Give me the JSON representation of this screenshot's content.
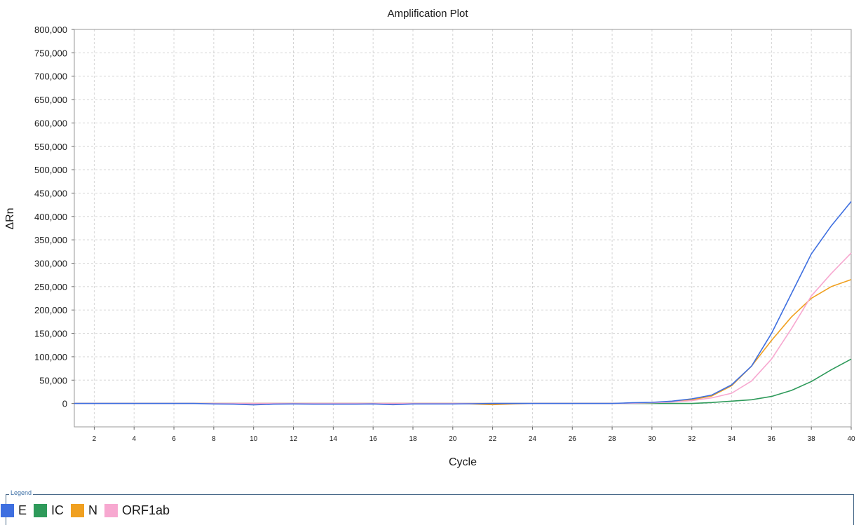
{
  "colors": {
    "E": "#3e6fe0",
    "IC": "#2e9a5a",
    "N": "#f0a020",
    "ORF1ab": "#f7a8d0"
  },
  "chart_data": {
    "type": "line",
    "title": "Amplification Plot",
    "xlabel": "Cycle",
    "ylabel": "ΔRn",
    "xlim": [
      1,
      40
    ],
    "ylim": [
      -50000,
      800000
    ],
    "xticks": [
      2,
      4,
      6,
      8,
      10,
      12,
      14,
      16,
      18,
      20,
      22,
      24,
      26,
      28,
      30,
      32,
      34,
      36,
      38,
      40
    ],
    "yticks": [
      0,
      50000,
      100000,
      150000,
      200000,
      250000,
      300000,
      350000,
      400000,
      450000,
      500000,
      550000,
      600000,
      650000,
      700000,
      750000,
      800000
    ],
    "ytick_labels": [
      "0",
      "50,000",
      "100,000",
      "150,000",
      "200,000",
      "250,000",
      "300,000",
      "350,000",
      "400,000",
      "450,000",
      "500,000",
      "550,000",
      "600,000",
      "650,000",
      "700,000",
      "750,000",
      "800,000"
    ],
    "grid": true,
    "legend_title": "Legend",
    "legend_position": "bottom",
    "x": [
      1,
      2,
      3,
      4,
      5,
      6,
      7,
      8,
      9,
      10,
      11,
      12,
      13,
      14,
      15,
      16,
      17,
      18,
      19,
      20,
      21,
      22,
      23,
      24,
      25,
      26,
      27,
      28,
      29,
      30,
      31,
      32,
      33,
      34,
      35,
      36,
      37,
      38,
      39,
      40
    ],
    "series": [
      {
        "name": "E",
        "values": [
          0,
          0,
          0,
          0,
          0,
          0,
          0,
          -1000,
          -1500,
          -3000,
          -1500,
          -1000,
          -1500,
          -1500,
          -1500,
          -1000,
          -2500,
          -1000,
          -1000,
          -1000,
          -500,
          0,
          0,
          0,
          0,
          0,
          0,
          0,
          1500,
          2500,
          5000,
          10000,
          18000,
          40000,
          80000,
          150000,
          235000,
          320000,
          380000,
          432000
        ]
      },
      {
        "name": "IC",
        "values": [
          0,
          0,
          0,
          0,
          0,
          0,
          0,
          0,
          0,
          0,
          0,
          0,
          0,
          0,
          0,
          0,
          0,
          0,
          0,
          0,
          0,
          0,
          0,
          0,
          0,
          0,
          0,
          0,
          0,
          0,
          0,
          0,
          2000,
          5000,
          8000,
          15000,
          28000,
          47000,
          72000,
          95000
        ]
      },
      {
        "name": "N",
        "values": [
          0,
          0,
          0,
          0,
          0,
          0,
          0,
          0,
          0,
          0,
          0,
          0,
          0,
          0,
          0,
          0,
          0,
          0,
          0,
          0,
          -1000,
          -2500,
          -1000,
          0,
          0,
          0,
          0,
          0,
          1000,
          2000,
          4000,
          8000,
          16000,
          38000,
          80000,
          135000,
          185000,
          225000,
          250000,
          265000
        ]
      },
      {
        "name": "ORF1ab",
        "values": [
          0,
          0,
          0,
          0,
          0,
          0,
          0,
          0,
          0,
          0,
          0,
          0,
          0,
          0,
          0,
          0,
          0,
          0,
          0,
          0,
          0,
          0,
          0,
          0,
          0,
          0,
          0,
          0,
          500,
          1500,
          3000,
          6000,
          12000,
          22000,
          48000,
          95000,
          160000,
          230000,
          278000,
          322000
        ]
      }
    ]
  }
}
